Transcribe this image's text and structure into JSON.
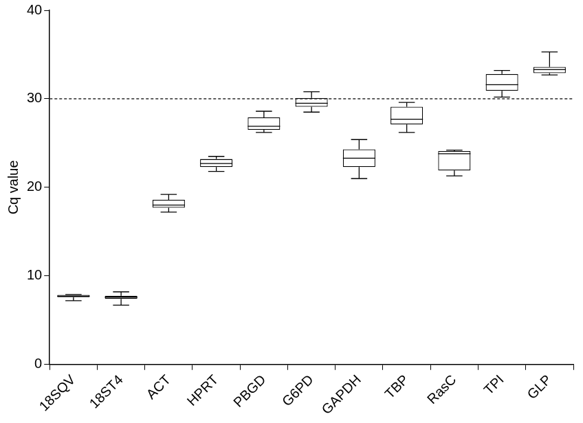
{
  "chart_data": {
    "type": "box",
    "y_label": "Cq value",
    "categories": [
      "18SQV",
      "18ST4",
      "ACT",
      "HPRT",
      "PBGD",
      "G6PD",
      "GAPDH",
      "TBP",
      "RasC",
      "TPI",
      "GLP"
    ],
    "min": [
      7.2,
      6.7,
      17.2,
      21.8,
      26.2,
      28.5,
      21.0,
      26.2,
      21.3,
      30.2,
      32.7
    ],
    "q1": [
      7.6,
      7.4,
      17.7,
      22.3,
      26.5,
      29.1,
      22.3,
      27.1,
      21.9,
      30.9,
      32.9
    ],
    "median": [
      7.7,
      7.6,
      18.0,
      22.7,
      26.9,
      29.5,
      23.3,
      27.7,
      23.8,
      31.6,
      33.3
    ],
    "q3": [
      7.85,
      7.75,
      18.6,
      23.2,
      27.9,
      30.1,
      24.3,
      29.1,
      24.1,
      32.8,
      33.6
    ],
    "max": [
      7.9,
      8.2,
      19.2,
      23.5,
      28.6,
      30.8,
      25.4,
      29.6,
      24.2,
      33.2,
      35.3
    ],
    "color": "#000000",
    "reference_lines": [
      {
        "value": 30,
        "line_style": "dashed"
      }
    ],
    "ylim": [
      0,
      40
    ],
    "yticks": [
      0,
      10,
      20,
      30,
      40
    ],
    "grid": false
  }
}
